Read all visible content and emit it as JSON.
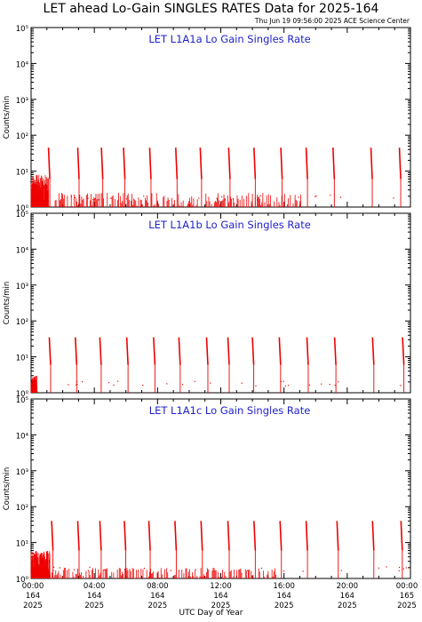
{
  "header": {
    "title": "LET ahead Lo-Gain SINGLES RATES Data for 2025-164",
    "timestamp": "Thu Jun 19 09:56:00 2025 ACE Science Center"
  },
  "xaxis_label": "UTC Day of Year",
  "colors": {
    "data": "#ee0000",
    "panel_title": "#2222cc",
    "axis": "#000000"
  },
  "chart_data": [
    {
      "type": "line",
      "title": "LET L1A1a Lo Gain Singles Rate",
      "ylabel": "Counts/min",
      "yscale": "log",
      "ylim": [
        1,
        100000
      ],
      "xlim": [
        0,
        24
      ],
      "ytick_labels": [
        "10⁰",
        "10¹",
        "10²",
        "10³",
        "10⁴",
        "10⁵"
      ],
      "baseline": 1,
      "spikes": [
        {
          "x": 1.1,
          "y": 45
        },
        {
          "x": 2.95,
          "y": 45
        },
        {
          "x": 4.45,
          "y": 45
        },
        {
          "x": 5.85,
          "y": 45
        },
        {
          "x": 7.5,
          "y": 45
        },
        {
          "x": 9.15,
          "y": 45
        },
        {
          "x": 10.7,
          "y": 45
        },
        {
          "x": 12.5,
          "y": 45
        },
        {
          "x": 14.1,
          "y": 45
        },
        {
          "x": 15.8,
          "y": 45
        },
        {
          "x": 17.4,
          "y": 45
        },
        {
          "x": 19.1,
          "y": 45
        },
        {
          "x": 21.5,
          "y": 45
        },
        {
          "x": 23.3,
          "y": 45
        }
      ],
      "noise": {
        "start": 0,
        "end": 1.1,
        "level": 8,
        "tail_end": 17.2,
        "tail_level": 2.5
      }
    },
    {
      "type": "line",
      "title": "LET L1A1b Lo Gain Singles Rate",
      "ylabel": "Counts/min",
      "yscale": "log",
      "ylim": [
        1,
        100000
      ],
      "xlim": [
        0,
        24
      ],
      "ytick_labels": [
        "10⁰",
        "10¹",
        "10²",
        "10³",
        "10⁴",
        "10⁵"
      ],
      "baseline": 1,
      "spikes": [
        {
          "x": 1.15,
          "y": 35
        },
        {
          "x": 2.8,
          "y": 35
        },
        {
          "x": 4.35,
          "y": 35
        },
        {
          "x": 6.05,
          "y": 35
        },
        {
          "x": 7.75,
          "y": 35
        },
        {
          "x": 9.35,
          "y": 35
        },
        {
          "x": 11.1,
          "y": 35
        },
        {
          "x": 12.45,
          "y": 35
        },
        {
          "x": 14.0,
          "y": 35
        },
        {
          "x": 15.7,
          "y": 35
        },
        {
          "x": 17.45,
          "y": 35
        },
        {
          "x": 19.2,
          "y": 35
        },
        {
          "x": 21.6,
          "y": 35
        },
        {
          "x": 23.5,
          "y": 35
        }
      ],
      "noise": {
        "start": 0,
        "end": 0.4,
        "level": 3,
        "tail_end": 0,
        "tail_level": 1
      }
    },
    {
      "type": "line",
      "title": "LET L1A1c Lo Gain Singles Rate",
      "ylabel": "Counts/min",
      "yscale": "log",
      "ylim": [
        1,
        100000
      ],
      "xlim": [
        0,
        24
      ],
      "ytick_labels": [
        "10⁰",
        "10¹",
        "10²",
        "10³",
        "10⁴",
        "10⁵"
      ],
      "baseline": 1,
      "spikes": [
        {
          "x": 1.3,
          "y": 40
        },
        {
          "x": 2.95,
          "y": 40
        },
        {
          "x": 4.35,
          "y": 40
        },
        {
          "x": 5.9,
          "y": 40
        },
        {
          "x": 7.45,
          "y": 40
        },
        {
          "x": 9.1,
          "y": 40
        },
        {
          "x": 10.75,
          "y": 40
        },
        {
          "x": 12.45,
          "y": 40
        },
        {
          "x": 14.1,
          "y": 40
        },
        {
          "x": 15.75,
          "y": 40
        },
        {
          "x": 17.4,
          "y": 40
        },
        {
          "x": 19.35,
          "y": 40
        },
        {
          "x": 21.6,
          "y": 40
        },
        {
          "x": 23.4,
          "y": 40
        }
      ],
      "noise": {
        "start": 0,
        "end": 1.2,
        "level": 6,
        "tail_end": 15.5,
        "tail_level": 2
      }
    }
  ],
  "xaxis": {
    "ticks": [
      {
        "x": 0,
        "time": "00:00",
        "doy": "164",
        "year": "2025"
      },
      {
        "x": 4,
        "time": "04:00",
        "doy": "164",
        "year": "2025"
      },
      {
        "x": 8,
        "time": "08:00",
        "doy": "164",
        "year": "2025"
      },
      {
        "x": 12,
        "time": "12:00",
        "doy": "164",
        "year": "2025"
      },
      {
        "x": 16,
        "time": "16:00",
        "doy": "164",
        "year": "2025"
      },
      {
        "x": 20,
        "time": "20:00",
        "doy": "164",
        "year": "2025"
      },
      {
        "x": 24,
        "time": "00:00",
        "doy": "165",
        "year": "2025"
      }
    ]
  }
}
